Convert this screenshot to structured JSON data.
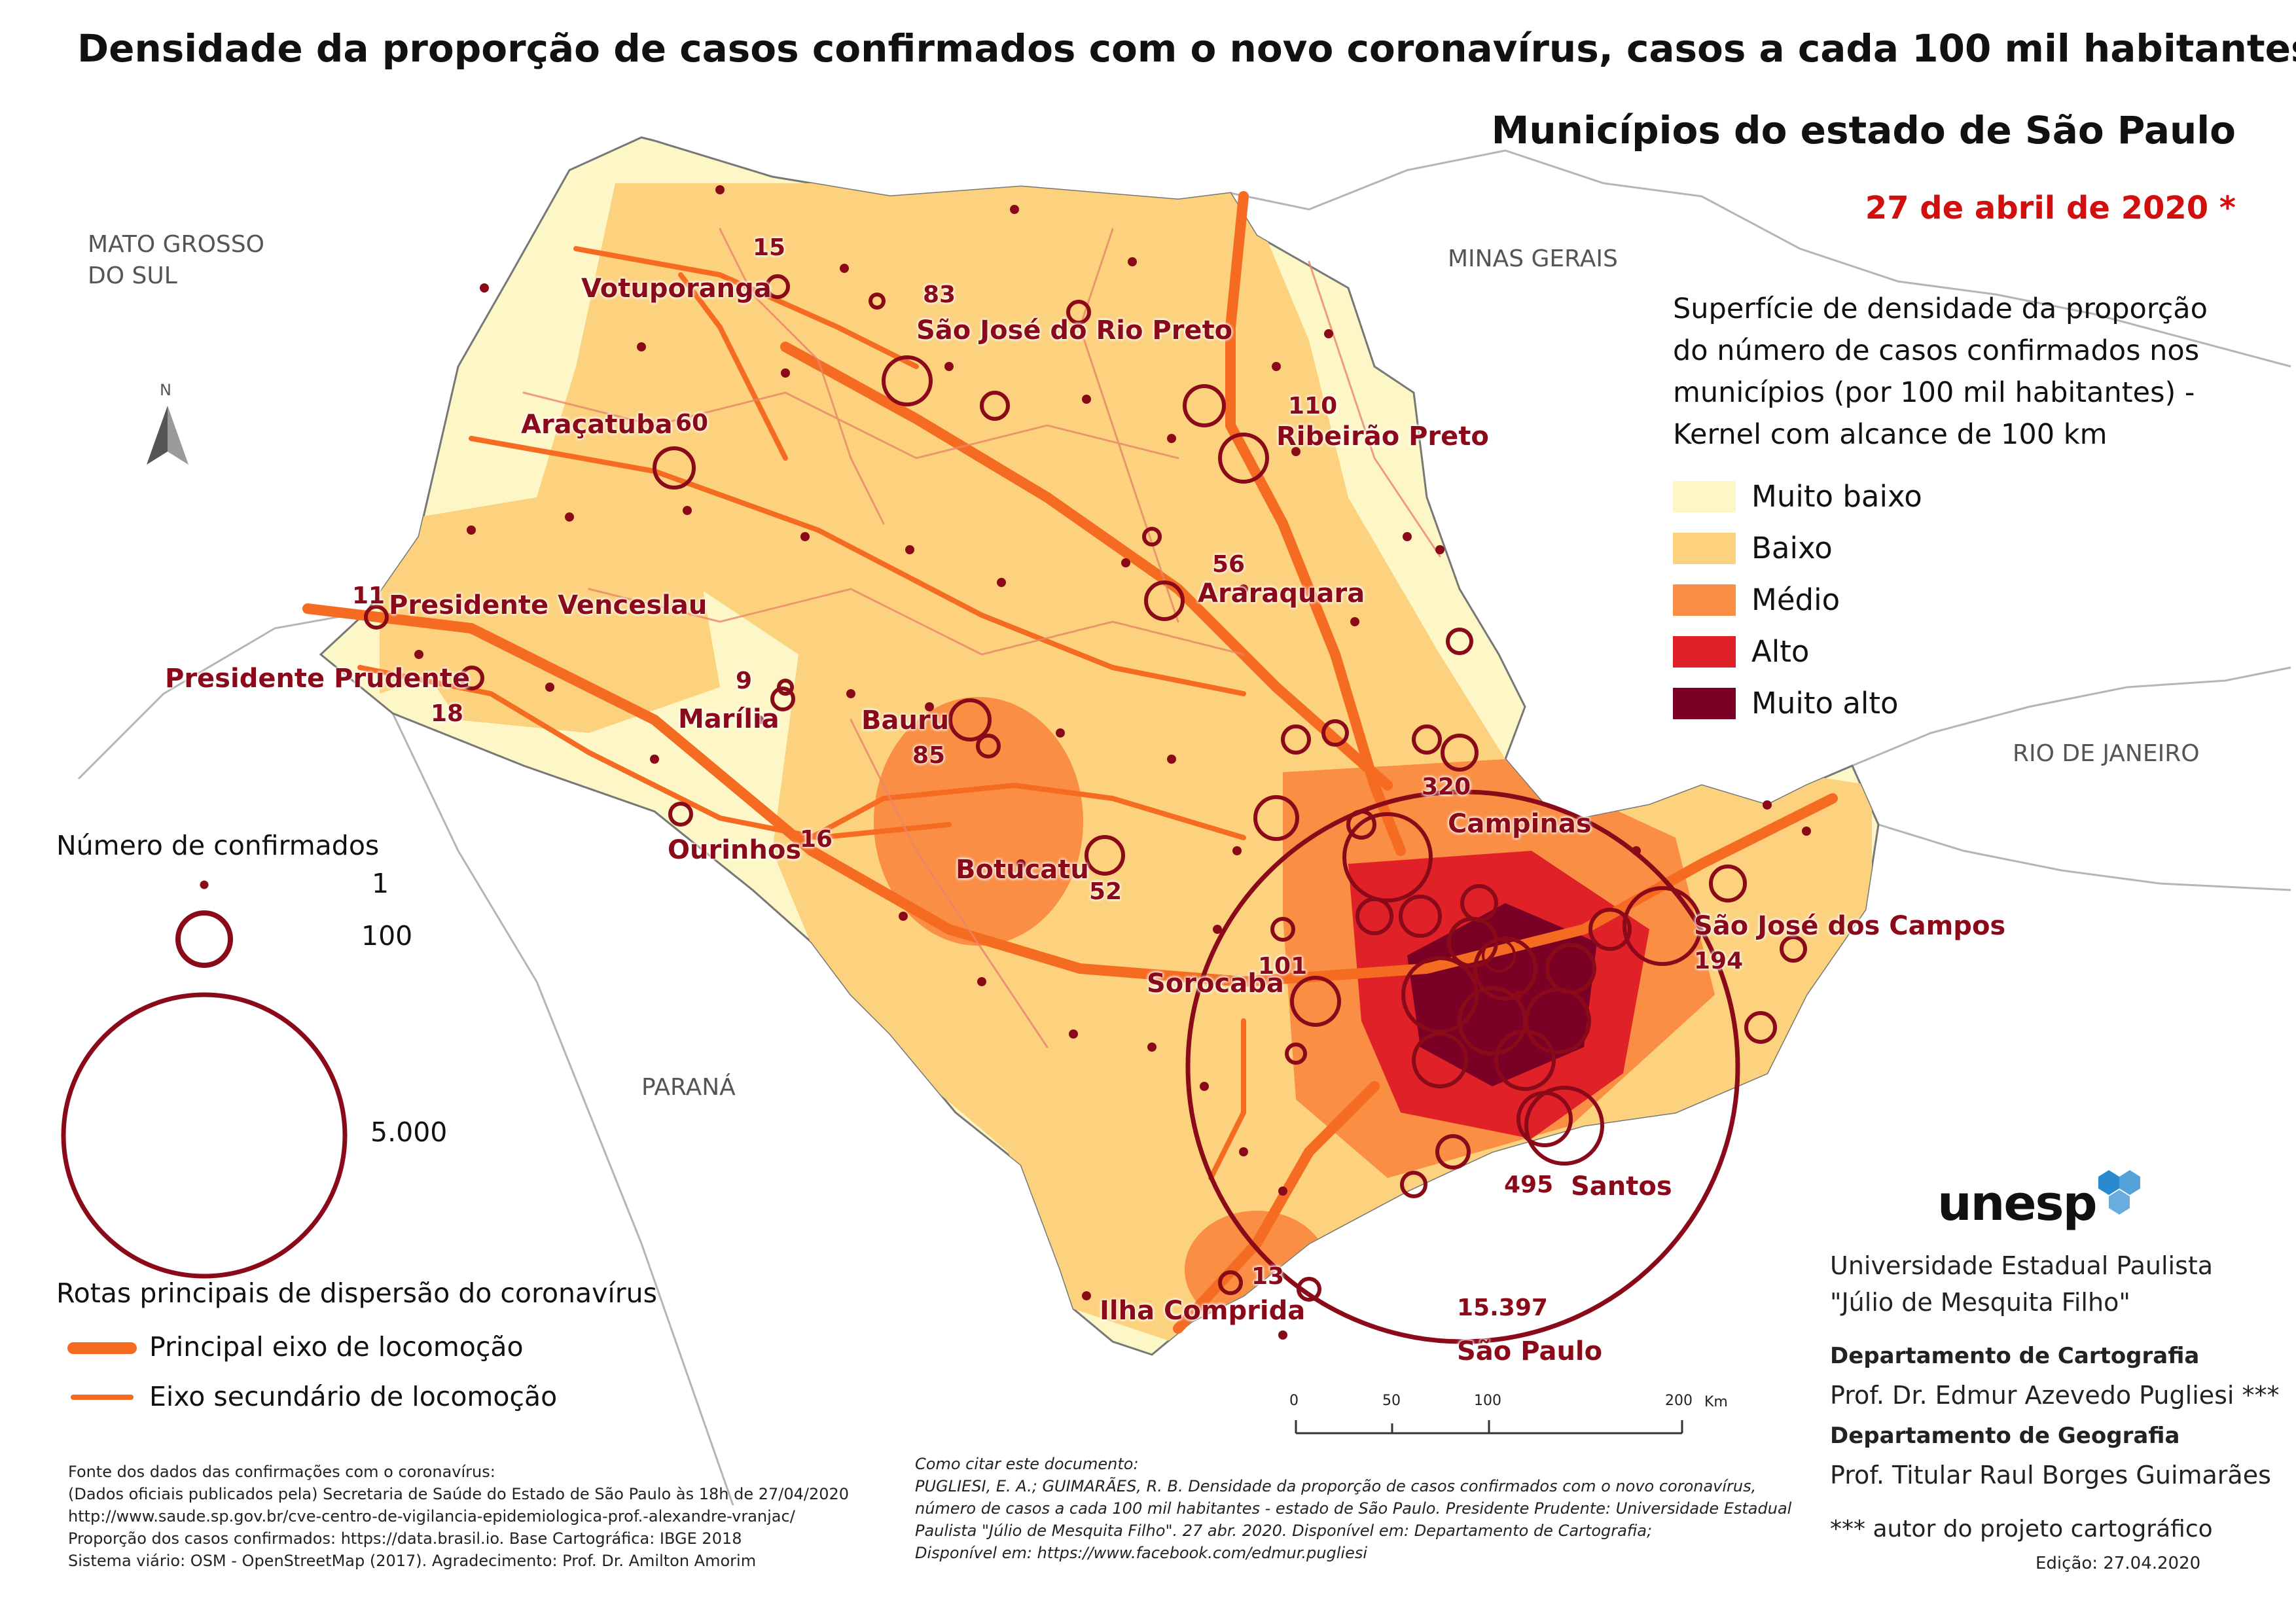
{
  "title": "Densidade da proporção de casos confirmados com o novo coronavírus, casos a cada 100 mil habitantes",
  "subtitle": "Municípios do estado de São Paulo",
  "date": "27 de abril de 2020 *",
  "neighbors": {
    "ms": "MATO GROSSO\nDO SUL",
    "mg": "MINAS GERAIS",
    "rj": "RIO DE JANEIRO",
    "pr": "PARANÁ"
  },
  "north_label": "N",
  "density_legend": {
    "title": "Superfície de densidade da proporção\ndo número de casos confirmados nos\nmunicípios (por 100 mil habitantes) -\nKernel com alcance de 100 km",
    "classes": [
      {
        "label": "Muito baixo",
        "color": "#fdf7c7"
      },
      {
        "label": "Baixo",
        "color": "#fcd27f"
      },
      {
        "label": "Médio",
        "color": "#f98e44"
      },
      {
        "label": "Alto",
        "color": "#e02127"
      },
      {
        "label": "Muito alto",
        "color": "#7b0025"
      }
    ]
  },
  "circle_legend": {
    "title": "Número de confirmados",
    "values": [
      "1",
      "100",
      "5.000"
    ]
  },
  "routes_legend": {
    "title": "Rotas principais de dispersão do coronavírus",
    "items": [
      {
        "label": "Principal eixo de locomoção"
      },
      {
        "label": "Eixo secundário de locomoção"
      }
    ]
  },
  "cities": [
    {
      "name": "Votuporanga",
      "count": "15"
    },
    {
      "name": "São José do Rio Preto",
      "count": "83"
    },
    {
      "name": "Araçatuba",
      "count": "60"
    },
    {
      "name": "Ribeirão Preto",
      "count": "110"
    },
    {
      "name": "Presidente Venceslau",
      "count": "11"
    },
    {
      "name": "Araraquara",
      "count": "56"
    },
    {
      "name": "Presidente Prudente",
      "count": "18"
    },
    {
      "name": "Marília",
      "count": "9"
    },
    {
      "name": "Bauru",
      "count": "85"
    },
    {
      "name": "Campinas",
      "count": "320"
    },
    {
      "name": "Ourinhos",
      "count": "16"
    },
    {
      "name": "Botucatu",
      "count": "52"
    },
    {
      "name": "São José dos Campos",
      "count": "194"
    },
    {
      "name": "Sorocaba",
      "count": "101"
    },
    {
      "name": "Santos",
      "count": "495"
    },
    {
      "name": "Ilha Comprida",
      "count": "13"
    },
    {
      "name": "São Paulo",
      "count": "15.397"
    }
  ],
  "scale_bar": {
    "ticks": [
      "0",
      "50",
      "100",
      "200"
    ],
    "unit": "Km"
  },
  "institution": {
    "logo": "unesp",
    "name": "Universidade Estadual Paulista\n\"Júlio de Mesquita Filho\"",
    "dept1": "Departamento de Cartografia",
    "person1": "Prof. Dr. Edmur Azevedo Pugliesi ***",
    "dept2": "Departamento de Geografia",
    "person2": "Prof. Titular Raul Borges Guimarães",
    "note": "*** autor do projeto cartográfico",
    "edition": "Edição: 27.04.2020"
  },
  "sources": "Fonte dos dados das confirmações com o coronavírus:\n(Dados oficiais publicados pela) Secretaria de Saúde do Estado de São Paulo às 18h de 27/04/2020\nhttp://www.saude.sp.gov.br/cve-centro-de-vigilancia-epidemiologica-prof.-alexandre-vranjac/\nProporção dos casos confirmados: https://data.brasil.io. Base Cartográfica: IBGE 2018\nSistema viário: OSM - OpenStreetMap (2017). Agradecimento: Prof. Dr. Amilton Amorim",
  "citation": "Como citar este documento:\nPUGLIESI, E. A.; GUIMARÃES, R. B. Densidade da proporção de casos confirmados com o novo coronavírus,\nnúmero de casos a cada 100 mil habitantes - estado de São Paulo. Presidente Prudente: Universidade Estadual\nPaulista \"Júlio de Mesquita Filho\". 27 abr. 2020. Disponível em: Departamento de Cartografia;\nDisponível em: https://www.facebook.com/edmur.pugliesi"
}
